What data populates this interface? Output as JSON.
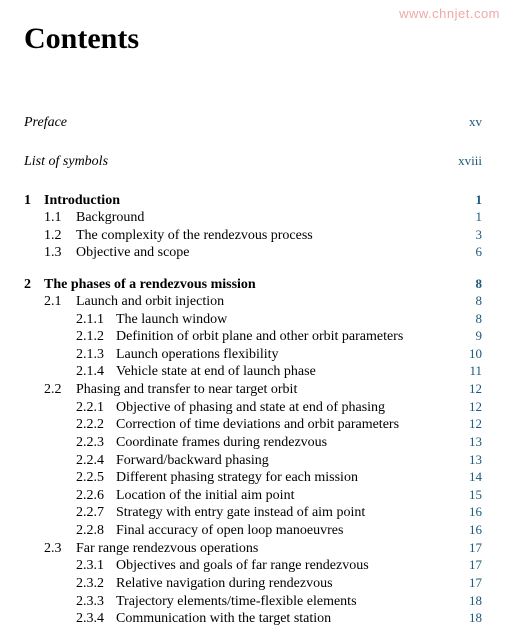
{
  "watermark": "www.chnjet.com",
  "heading": "Contents",
  "page_num_color": "#1a5a7a",
  "frontmatter": [
    {
      "title": "Preface",
      "page": "xv"
    },
    {
      "title": "List of symbols",
      "page": "xviii"
    }
  ],
  "chapters": [
    {
      "num": "1",
      "title": "Introduction",
      "page": "1",
      "sections": [
        {
          "num": "1.1",
          "title": "Background",
          "page": "1",
          "subs": []
        },
        {
          "num": "1.2",
          "title": "The complexity of the rendezvous process",
          "page": "3",
          "subs": []
        },
        {
          "num": "1.3",
          "title": "Objective and scope",
          "page": "6",
          "subs": []
        }
      ]
    },
    {
      "num": "2",
      "title": "The phases of a rendezvous mission",
      "page": "8",
      "sections": [
        {
          "num": "2.1",
          "title": "Launch and orbit injection",
          "page": "8",
          "subs": [
            {
              "num": "2.1.1",
              "title": "The launch window",
              "page": "8"
            },
            {
              "num": "2.1.2",
              "title": "Definition of orbit plane and other orbit parameters",
              "page": "9"
            },
            {
              "num": "2.1.3",
              "title": "Launch operations flexibility",
              "page": "10"
            },
            {
              "num": "2.1.4",
              "title": "Vehicle state at end of launch phase",
              "page": "11"
            }
          ]
        },
        {
          "num": "2.2",
          "title": "Phasing and transfer to near target orbit",
          "page": "12",
          "subs": [
            {
              "num": "2.2.1",
              "title": "Objective of phasing and state at end of phasing",
              "page": "12"
            },
            {
              "num": "2.2.2",
              "title": "Correction of time deviations and orbit parameters",
              "page": "12"
            },
            {
              "num": "2.2.3",
              "title": "Coordinate frames during rendezvous",
              "page": "13"
            },
            {
              "num": "2.2.4",
              "title": "Forward/backward phasing",
              "page": "13"
            },
            {
              "num": "2.2.5",
              "title": "Different phasing strategy for each mission",
              "page": "14"
            },
            {
              "num": "2.2.6",
              "title": "Location of the initial aim point",
              "page": "15"
            },
            {
              "num": "2.2.7",
              "title": "Strategy with entry gate instead of aim point",
              "page": "16"
            },
            {
              "num": "2.2.8",
              "title": "Final accuracy of open loop manoeuvres",
              "page": "16"
            }
          ]
        },
        {
          "num": "2.3",
          "title": "Far range rendezvous operations",
          "page": "17",
          "subs": [
            {
              "num": "2.3.1",
              "title": "Objectives and goals of far range rendezvous",
              "page": "17"
            },
            {
              "num": "2.3.2",
              "title": "Relative navigation during rendezvous",
              "page": "17"
            },
            {
              "num": "2.3.3",
              "title": "Trajectory elements/time-flexible elements",
              "page": "18"
            },
            {
              "num": "2.3.4",
              "title": "Communication with the target station",
              "page": "18"
            }
          ]
        }
      ]
    }
  ]
}
